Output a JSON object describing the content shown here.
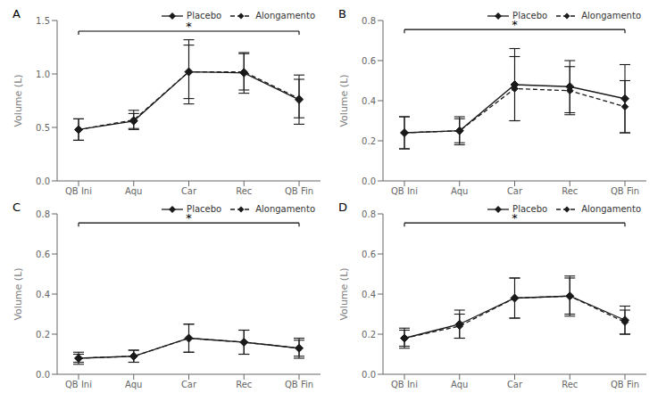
{
  "chart_data": [
    {
      "type": "line",
      "title": "A",
      "categories": [
        "QB Ini",
        "Aqu",
        "Car",
        "Rec",
        "QB Fin"
      ],
      "series": [
        {
          "name": "Placebo",
          "color": "#1a1a1a",
          "values": [
            0.48,
            0.56,
            1.02,
            1.01,
            0.76
          ],
          "errors": [
            0.1,
            0.07,
            0.3,
            0.19,
            0.23
          ],
          "marker": "diamond",
          "line_style": "solid"
        },
        {
          "name": "Alongamento",
          "color": "#1a1a1a",
          "values": [
            0.48,
            0.57,
            1.02,
            1.02,
            0.77
          ],
          "errors": [
            0.1,
            0.09,
            0.25,
            0.17,
            0.18
          ],
          "marker": "diamond",
          "line_style": "dashed"
        }
      ],
      "ylabel": "Volume (L)",
      "ylim": [
        0.0,
        1.5
      ],
      "yticks": [
        {
          "value": 0.0,
          "label": "0.0"
        },
        0.5,
        {
          "value": 1.0,
          "label": "1.0"
        },
        1.5
      ],
      "annotations": [
        {
          "text": "*",
          "x": "Car",
          "y": 1.4,
          "x_from": "QB Ini",
          "x_to": "QB Fin"
        }
      ],
      "legend": "upper right",
      "grid": false
    },
    {
      "type": "line",
      "title": "B",
      "categories": [
        "QB Ini",
        "Aqu",
        "Car",
        "Rec",
        "QB Fin"
      ],
      "series": [
        {
          "name": "Placebo",
          "color": "#1a1a1a",
          "values": [
            0.24,
            0.25,
            0.48,
            0.47,
            0.41
          ],
          "errors": [
            0.08,
            0.07,
            0.18,
            0.13,
            0.17
          ],
          "marker": "diamond",
          "line_style": "solid"
        },
        {
          "name": "Alongamento",
          "color": "#1a1a1a",
          "values": [
            0.24,
            0.25,
            0.46,
            0.45,
            0.37
          ],
          "errors": [
            0.08,
            0.06,
            0.16,
            0.12,
            0.13
          ],
          "marker": "diamond",
          "line_style": "dashed"
        }
      ],
      "ylabel": "Volume (L)",
      "ylim": [
        0.0,
        0.8
      ],
      "yticks": [
        {
          "value": 0.0,
          "label": "0.0"
        },
        0.2,
        0.4,
        0.6,
        0.8
      ],
      "annotations": [
        {
          "text": "*",
          "x": "Car",
          "y": 0.755,
          "x_from": "QB Ini",
          "x_to": "QB Fin"
        }
      ],
      "legend": "upper right",
      "grid": false
    },
    {
      "type": "line",
      "title": "C",
      "categories": [
        "QB Ini",
        "Aqu",
        "Car",
        "Rec",
        "QB Fin"
      ],
      "series": [
        {
          "name": "Placebo",
          "color": "#1a1a1a",
          "values": [
            0.08,
            0.09,
            0.18,
            0.16,
            0.13
          ],
          "errors": [
            0.03,
            0.03,
            0.07,
            0.06,
            0.05
          ],
          "marker": "diamond",
          "line_style": "solid"
        },
        {
          "name": "Alongamento",
          "color": "#1a1a1a",
          "values": [
            0.08,
            0.09,
            0.18,
            0.16,
            0.13
          ],
          "errors": [
            0.02,
            0.03,
            0.07,
            0.06,
            0.04
          ],
          "marker": "diamond",
          "line_style": "dashed"
        }
      ],
      "ylabel": "Volume (L)",
      "ylim": [
        0.0,
        0.8
      ],
      "yticks": [
        {
          "value": 0.0,
          "label": "0.0"
        },
        0.2,
        0.4,
        0.6,
        0.8
      ],
      "annotations": [
        {
          "text": "*",
          "x": "Car",
          "y": 0.755,
          "x_from": "QB Ini",
          "x_to": "QB Fin"
        }
      ],
      "legend": "upper right",
      "grid": false
    },
    {
      "type": "line",
      "title": "D",
      "categories": [
        "QB Ini",
        "Aqu",
        "Car",
        "Rec",
        "QB Fin"
      ],
      "series": [
        {
          "name": "Placebo",
          "color": "#1a1a1a",
          "values": [
            0.18,
            0.25,
            0.38,
            0.39,
            0.27
          ],
          "errors": [
            0.05,
            0.07,
            0.1,
            0.1,
            0.07
          ],
          "marker": "diamond",
          "line_style": "solid"
        },
        {
          "name": "Alongamento",
          "color": "#1a1a1a",
          "values": [
            0.18,
            0.24,
            0.38,
            0.39,
            0.26
          ],
          "errors": [
            0.04,
            0.06,
            0.1,
            0.09,
            0.06
          ],
          "marker": "diamond",
          "line_style": "dashed"
        }
      ],
      "ylabel": "Volume (L)",
      "ylim": [
        0.0,
        0.8
      ],
      "yticks": [
        {
          "value": 0.0,
          "label": "0.0"
        },
        0.2,
        0.4,
        0.6,
        0.8
      ],
      "annotations": [
        {
          "text": "*",
          "x": "Car",
          "y": 0.755,
          "x_from": "QB Ini",
          "x_to": "QB Fin"
        }
      ],
      "legend": "upper right",
      "grid": false
    }
  ]
}
